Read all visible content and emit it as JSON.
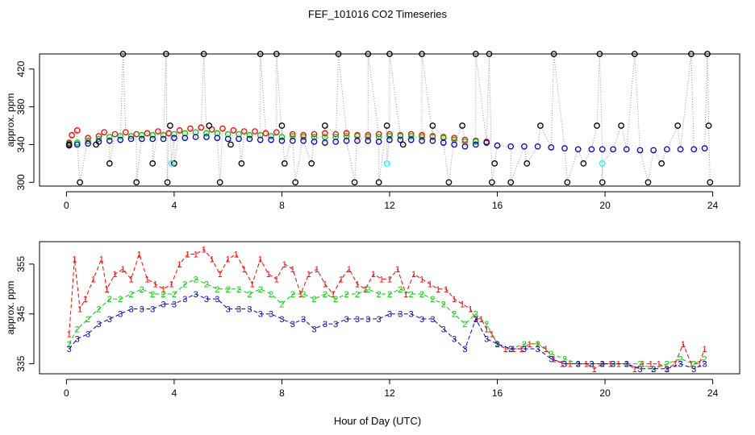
{
  "title": "FEF_101016  CO2 Timeseries",
  "xlabel": "Hour of Day (UTC)",
  "chart_data": [
    {
      "type": "scatter",
      "ylabel": "approx. ppm",
      "xlim": [
        -1,
        25
      ],
      "ylim": [
        296,
        436
      ],
      "xticks": [
        0,
        4,
        8,
        12,
        16,
        20,
        24
      ],
      "yticks": [
        300,
        340,
        380,
        420
      ],
      "ytick_labels": [
        "300",
        "340",
        "380",
        "420"
      ],
      "grid": false,
      "series_colors": {
        "s1": "#ff0000",
        "s2": "#00cc00",
        "s3": "#0000cc",
        "spike": "#000000",
        "cal": "#00ffff"
      },
      "series": [
        {
          "key": "s1",
          "x": [
            0.1,
            0.2,
            0.4,
            0.8,
            1.2,
            1.4,
            1.8,
            2.2,
            2.6,
            3.0,
            3.4,
            3.8,
            4.2,
            4.6,
            5.0,
            5.4,
            5.8,
            6.2,
            6.6,
            7.0,
            7.4,
            7.8,
            8.4,
            8.8,
            9.2,
            9.6,
            10.0,
            10.4,
            10.8,
            11.2,
            11.6,
            12.0,
            12.4,
            12.8,
            13.2,
            13.6,
            14.0,
            14.4,
            14.8,
            15.2,
            15.6
          ],
          "values": [
            342,
            350,
            355,
            347,
            349,
            353,
            351,
            353,
            351,
            352,
            354,
            352,
            355,
            357,
            358,
            356,
            357,
            355,
            354,
            354,
            352,
            353,
            351,
            350,
            351,
            352,
            351,
            352,
            350,
            350,
            351,
            351,
            350,
            351,
            350,
            349,
            348,
            347,
            345,
            344,
            343
          ]
        },
        {
          "key": "s2",
          "x": [
            0.1,
            0.4,
            0.8,
            1.2,
            1.6,
            2.0,
            2.4,
            2.8,
            3.2,
            3.6,
            4.0,
            4.4,
            4.8,
            5.2,
            5.6,
            6.0,
            6.4,
            6.8,
            7.2,
            7.6,
            8.0,
            8.4,
            8.8,
            9.2,
            9.6,
            10.0,
            10.4,
            10.8,
            11.2,
            11.6,
            12.0,
            12.4,
            12.8,
            13.2,
            13.6,
            14.0,
            14.4,
            14.8,
            15.2,
            15.6
          ],
          "values": [
            341,
            342,
            344,
            346,
            348,
            349,
            349,
            350,
            350,
            350,
            351,
            352,
            353,
            352,
            352,
            351,
            351,
            350,
            350,
            349,
            348,
            349,
            348,
            348,
            348,
            348,
            349,
            349,
            348,
            348,
            349,
            349,
            349,
            348,
            348,
            347,
            345,
            343,
            343,
            342
          ]
        },
        {
          "key": "s3",
          "x": [
            0.1,
            0.4,
            0.8,
            1.2,
            1.6,
            2.0,
            2.4,
            2.8,
            3.2,
            3.6,
            4.0,
            4.4,
            4.8,
            5.2,
            5.6,
            6.0,
            6.4,
            6.8,
            7.2,
            7.6,
            8.0,
            8.4,
            8.8,
            9.2,
            9.6,
            10.0,
            10.4,
            10.8,
            11.2,
            11.6,
            12.0,
            12.4,
            12.8,
            13.2,
            13.6,
            14.0,
            14.4,
            14.8,
            15.2,
            15.6,
            16.0,
            16.5,
            17.0,
            17.5,
            18.0,
            18.5,
            19.0,
            19.5,
            19.9,
            20.3,
            20.8,
            21.3,
            21.8,
            22.3,
            22.8,
            23.3,
            23.7
          ],
          "values": [
            339,
            340,
            341,
            343,
            344,
            345,
            346,
            346,
            346,
            346,
            347,
            347,
            348,
            348,
            347,
            346,
            346,
            346,
            345,
            345,
            344,
            344,
            344,
            343,
            342,
            343,
            344,
            344,
            344,
            343,
            345,
            345,
            345,
            344,
            344,
            342,
            340,
            338,
            340,
            342,
            339,
            338,
            338,
            338,
            337,
            336,
            335,
            335,
            335,
            335,
            335,
            334,
            334,
            335,
            335,
            335,
            336
          ]
        },
        {
          "key": "spike",
          "x": [
            0.1,
            0.5,
            1.1,
            1.6,
            2.1,
            2.6,
            3.2,
            3.7,
            3.75,
            3.85,
            4.0,
            5.1,
            5.3,
            5.7,
            6.1,
            6.5,
            7.2,
            7.8,
            8.0,
            8.1,
            8.5,
            9.1,
            9.6,
            10.1,
            10.7,
            11.2,
            11.6,
            11.9,
            12.0,
            12.5,
            13.2,
            13.6,
            14.2,
            14.7,
            15.2,
            15.7,
            15.8,
            15.9,
            16.5,
            17.1,
            17.6,
            18.1,
            18.6,
            19.2,
            19.7,
            19.8,
            19.9,
            20.6,
            21.1,
            21.6,
            22.1,
            22.7,
            23.2,
            23.8,
            23.85,
            23.9
          ],
          "values": [
            340,
            300,
            340,
            320,
            436,
            300,
            320,
            436,
            300,
            360,
            320,
            436,
            360,
            300,
            340,
            320,
            436,
            436,
            360,
            320,
            300,
            320,
            360,
            436,
            300,
            436,
            300,
            360,
            436,
            340,
            436,
            360,
            300,
            360,
            436,
            436,
            300,
            320,
            300,
            320,
            360,
            436,
            300,
            320,
            360,
            436,
            300,
            360,
            436,
            300,
            320,
            360,
            436,
            436,
            360,
            300
          ]
        },
        {
          "key": "cal",
          "x": [
            3.9,
            11.9,
            19.9
          ],
          "values": [
            320,
            320,
            320
          ]
        }
      ]
    },
    {
      "type": "line",
      "ylabel": "approx. ppm",
      "xlim": [
        -1,
        25
      ],
      "ylim": [
        333,
        359.5
      ],
      "xticks": [
        0,
        4,
        8,
        12,
        16,
        20,
        24
      ],
      "yticks": [
        335,
        345,
        355
      ],
      "ytick_labels": [
        "335",
        "345",
        "355"
      ],
      "grid": false,
      "series_colors": {
        "s1": "#ff0000",
        "s2": "#00cc00",
        "s3": "#0000cc"
      },
      "series": [
        {
          "key": "s1",
          "label": "1",
          "x": [
            0.1,
            0.3,
            0.5,
            0.7,
            1.0,
            1.3,
            1.5,
            1.8,
            2.1,
            2.4,
            2.7,
            3.0,
            3.3,
            3.6,
            3.9,
            4.2,
            4.5,
            4.8,
            5.1,
            5.4,
            5.7,
            6.0,
            6.3,
            6.6,
            6.9,
            7.2,
            7.5,
            7.8,
            8.1,
            8.4,
            8.7,
            9.0,
            9.3,
            9.6,
            9.9,
            10.2,
            10.5,
            10.8,
            11.1,
            11.4,
            11.7,
            12.0,
            12.3,
            12.6,
            12.9,
            13.2,
            13.5,
            13.8,
            14.1,
            14.4,
            14.7,
            15.0,
            15.2,
            15.4,
            15.6,
            15.8,
            16.0,
            16.3,
            16.6,
            16.9,
            17.2,
            17.5,
            17.8,
            18.1,
            18.4,
            18.7,
            19.0,
            19.3,
            19.6,
            19.9,
            20.2,
            20.5,
            20.8,
            21.1,
            21.4,
            21.7,
            22.0,
            22.3,
            22.6,
            22.9,
            23.2,
            23.5,
            23.7
          ],
          "values": [
            341,
            356,
            346,
            348,
            352,
            356,
            350,
            353,
            354,
            352,
            357,
            352,
            351,
            350,
            351,
            355,
            357,
            357,
            358,
            356,
            353,
            356,
            357,
            354,
            351,
            356,
            353,
            352,
            355,
            354,
            349,
            353,
            354,
            351,
            349,
            352,
            354,
            351,
            350,
            353,
            352,
            352,
            354,
            349,
            353,
            352,
            351,
            350,
            350,
            348,
            347,
            346,
            344,
            344,
            342,
            341,
            339,
            338,
            338,
            338,
            339,
            339,
            338,
            336,
            335,
            335,
            335,
            335,
            334,
            335,
            335,
            335,
            335,
            334,
            335,
            335,
            335,
            334,
            335,
            339,
            335,
            335,
            338
          ]
        },
        {
          "key": "s2",
          "label": "2",
          "x": [
            0.1,
            0.4,
            0.8,
            1.2,
            1.6,
            2.0,
            2.4,
            2.8,
            3.2,
            3.6,
            4.0,
            4.4,
            4.8,
            5.2,
            5.6,
            6.0,
            6.4,
            6.8,
            7.2,
            7.6,
            8.0,
            8.4,
            8.8,
            9.2,
            9.6,
            10.0,
            10.4,
            10.8,
            11.2,
            11.6,
            12.0,
            12.4,
            12.8,
            13.2,
            13.6,
            14.0,
            14.4,
            14.8,
            15.2,
            15.6,
            16.0,
            16.5,
            17.0,
            17.5,
            18.0,
            18.5,
            19.0,
            19.5,
            19.9,
            20.3,
            20.8,
            21.3,
            21.8,
            22.3,
            22.8,
            23.3,
            23.7
          ],
          "values": [
            339,
            342,
            344,
            346,
            348,
            348,
            349,
            350,
            349,
            349,
            349,
            351,
            352,
            351,
            350,
            350,
            350,
            349,
            350,
            349,
            347,
            349,
            349,
            348,
            349,
            348,
            349,
            349,
            350,
            349,
            349,
            350,
            349,
            349,
            348,
            347,
            345,
            343,
            345,
            343,
            339,
            338,
            339,
            339,
            337,
            336,
            335,
            335,
            335,
            335,
            335,
            335,
            334,
            335,
            336,
            335,
            336
          ]
        },
        {
          "key": "s3",
          "label": "3",
          "x": [
            0.1,
            0.4,
            0.8,
            1.2,
            1.6,
            2.0,
            2.4,
            2.8,
            3.2,
            3.6,
            4.0,
            4.4,
            4.8,
            5.2,
            5.6,
            6.0,
            6.4,
            6.8,
            7.2,
            7.6,
            8.0,
            8.4,
            8.8,
            9.2,
            9.6,
            10.0,
            10.4,
            10.8,
            11.2,
            11.6,
            12.0,
            12.4,
            12.8,
            13.2,
            13.6,
            14.0,
            14.4,
            14.8,
            15.2,
            15.6,
            16.0,
            16.5,
            17.0,
            17.5,
            18.0,
            18.5,
            19.0,
            19.5,
            19.9,
            20.3,
            20.8,
            21.3,
            21.8,
            22.3,
            22.8,
            23.3,
            23.7
          ],
          "values": [
            338,
            340,
            341,
            343,
            344,
            345,
            346,
            346,
            346,
            347,
            347,
            348,
            349,
            348,
            348,
            346,
            346,
            346,
            345,
            345,
            344,
            343,
            344,
            342,
            343,
            343,
            344,
            344,
            344,
            344,
            345,
            345,
            345,
            344,
            344,
            342,
            340,
            338,
            344,
            340,
            339,
            338,
            338,
            338,
            336,
            335,
            335,
            335,
            335,
            335,
            335,
            334,
            334,
            334,
            335,
            334,
            335
          ]
        }
      ]
    }
  ]
}
